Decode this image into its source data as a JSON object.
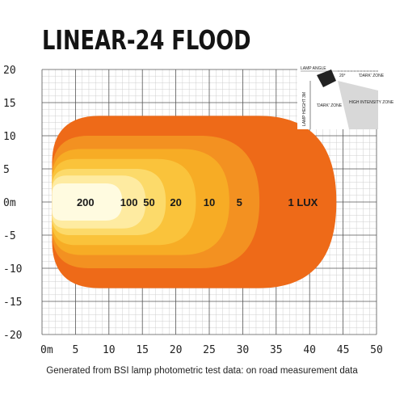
{
  "chart_data": {
    "type": "area",
    "title": "LINEAR-24 FLOOD",
    "xlabel": "",
    "ylabel": "",
    "xlim": [
      0,
      50
    ],
    "ylim": [
      -20,
      20
    ],
    "x_ticks": [
      "0m",
      "5",
      "10",
      "15",
      "20",
      "25",
      "30",
      "35",
      "40",
      "45",
      "50"
    ],
    "y_ticks": [
      "20",
      "15",
      "10",
      "5",
      "0m",
      "-5",
      "-10",
      "-15",
      "-20"
    ],
    "grid": true,
    "contours": [
      {
        "label": "1 LUX",
        "lux": 1,
        "x_start": 1.5,
        "x_end": 44,
        "half_width": 13,
        "label_x": 39,
        "color": "#ee6a18"
      },
      {
        "label": "5",
        "lux": 5,
        "x_start": 1.5,
        "x_end": 32.5,
        "half_width": 10,
        "label_x": 29.5,
        "color": "#f39121"
      },
      {
        "label": "10",
        "lux": 10,
        "x_start": 1.5,
        "x_end": 28,
        "half_width": 8,
        "label_x": 25,
        "color": "#f7ac25"
      },
      {
        "label": "20",
        "lux": 20,
        "x_start": 1.5,
        "x_end": 23,
        "half_width": 6.5,
        "label_x": 20,
        "color": "#fac33b"
      },
      {
        "label": "50",
        "lux": 50,
        "x_start": 1.5,
        "x_end": 18.5,
        "half_width": 5,
        "label_x": 16,
        "color": "#fcda6a"
      },
      {
        "label": "100",
        "lux": 100,
        "x_start": 1.5,
        "x_end": 15.5,
        "half_width": 4,
        "label_x": 13,
        "color": "#feeba1"
      },
      {
        "label": "200",
        "lux": 200,
        "x_start": 1.5,
        "x_end": 12,
        "half_width": 2.8,
        "label_x": 6.5,
        "color": "#fffbe0"
      }
    ]
  },
  "inset": {
    "lamp_angle": "LAMP ANGLE",
    "angle": "20°",
    "dark_zone_top": "'DARK' ZONE",
    "dark_zone_left": "'DARK' ZONE",
    "high_intensity": "HIGH INTENSITY ZONE",
    "lamp_height": "LAMP HEIGHT 3M"
  },
  "caption": "Generated from BSI lamp photometric test data: on road measurement data"
}
